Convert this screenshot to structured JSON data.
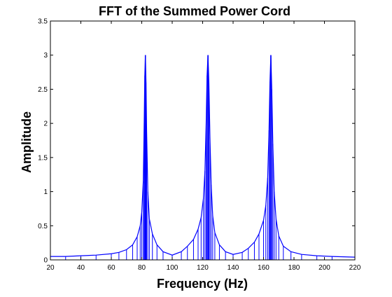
{
  "chart_data": {
    "type": "line",
    "title": "FFT of the Summed Power Cord",
    "xlabel": "Frequency (Hz)",
    "ylabel": "Amplitude",
    "xlim": [
      20,
      220
    ],
    "ylim": [
      0,
      3.5
    ],
    "x_ticks": [
      20,
      40,
      60,
      80,
      100,
      120,
      140,
      160,
      180,
      200,
      220
    ],
    "y_ticks": [
      0,
      0.5,
      1,
      1.5,
      2,
      2.5,
      3,
      3.5
    ],
    "x_tick_labels": [
      "20",
      "40",
      "60",
      "80",
      "100",
      "120",
      "140",
      "160",
      "180",
      "200",
      "220"
    ],
    "y_tick_labels": [
      "0",
      "0.5",
      "1",
      "1.5",
      "2",
      "2.5",
      "3",
      "3.5"
    ],
    "grid": false,
    "line_color": "#0000ff",
    "peaks": [
      {
        "x": 82.4,
        "y": 3.0
      },
      {
        "x": 123.5,
        "y": 3.0
      },
      {
        "x": 164.8,
        "y": 3.0
      }
    ],
    "series": [
      {
        "x": [
          20,
          30,
          40,
          50,
          60,
          65,
          70,
          74,
          77,
          79,
          80,
          81,
          81.6,
          82,
          82.4,
          82.8,
          83.2,
          84,
          85,
          87,
          90,
          94,
          100,
          106,
          110,
          114,
          117,
          119,
          120.5,
          121.5,
          122.3,
          122.9,
          123.5,
          124.1,
          124.8,
          125.6,
          126.6,
          128,
          131,
          135,
          140,
          146,
          150,
          154,
          157,
          160,
          161.5,
          162.7,
          163.6,
          164.2,
          164.8,
          165.4,
          166.1,
          167,
          168.2,
          170,
          173,
          178,
          185,
          195,
          205,
          220
        ],
        "y": [
          0.05,
          0.05,
          0.06,
          0.07,
          0.09,
          0.11,
          0.15,
          0.22,
          0.34,
          0.5,
          0.7,
          1.15,
          2.0,
          2.7,
          3.0,
          2.6,
          1.9,
          1.0,
          0.6,
          0.38,
          0.22,
          0.12,
          0.07,
          0.12,
          0.2,
          0.3,
          0.45,
          0.62,
          0.9,
          1.3,
          2.0,
          2.7,
          3.0,
          2.6,
          1.8,
          1.1,
          0.65,
          0.4,
          0.22,
          0.12,
          0.08,
          0.11,
          0.17,
          0.26,
          0.38,
          0.58,
          0.8,
          1.2,
          1.9,
          2.6,
          3.0,
          2.5,
          1.7,
          1.0,
          0.6,
          0.35,
          0.2,
          0.12,
          0.08,
          0.06,
          0.05,
          0.04
        ]
      }
    ]
  }
}
